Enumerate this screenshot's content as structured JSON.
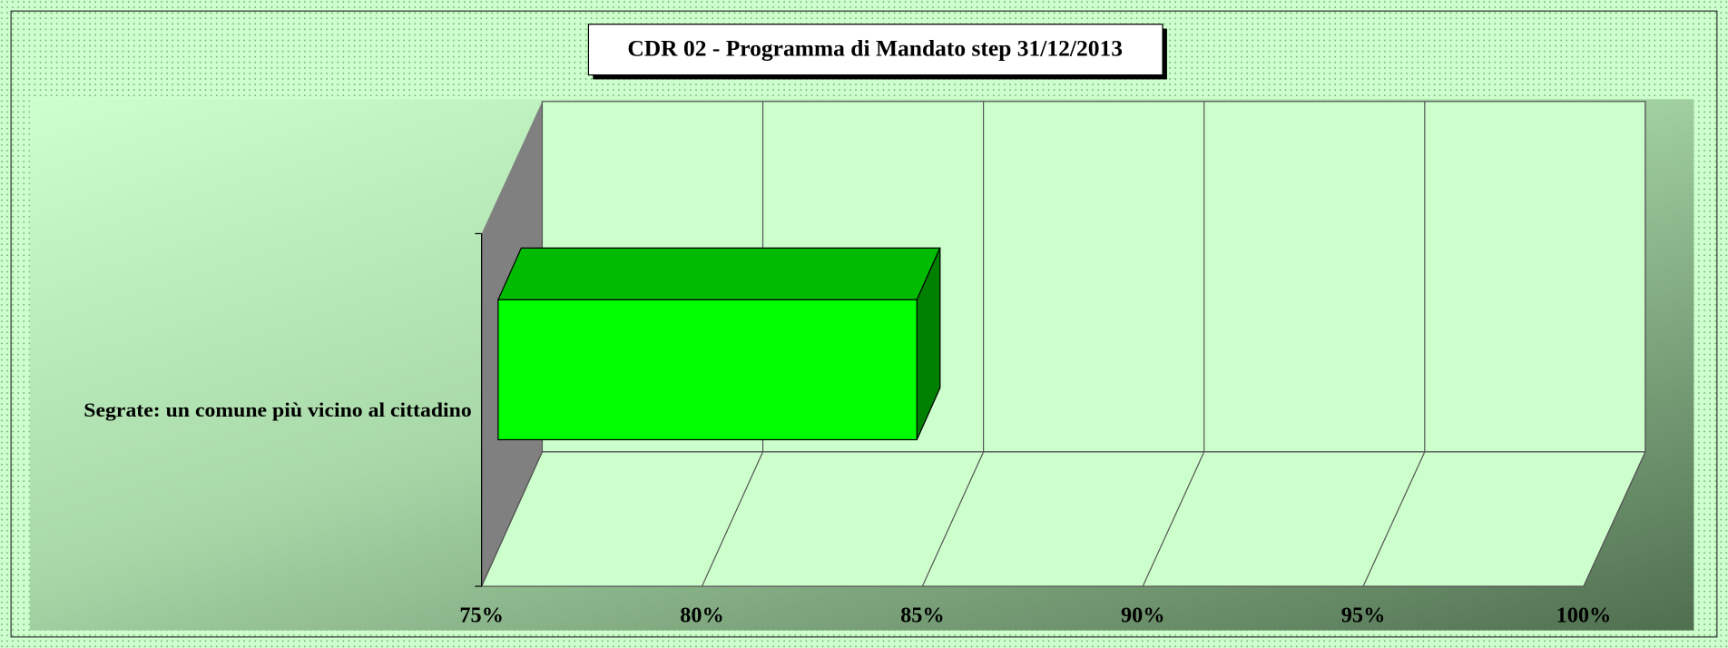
{
  "chart_data": {
    "type": "bar",
    "orientation": "horizontal",
    "title": "CDR 02 -  Programma di Mandato step 31/12/2013",
    "categories": [
      "Segrate: un comune più vicino al cittadino"
    ],
    "values": [
      84.5
    ],
    "color": "#00ff00",
    "xlim": [
      75,
      100
    ],
    "xticks": [
      {
        "value": 75,
        "label": "75%"
      },
      {
        "value": 80,
        "label": "80%"
      },
      {
        "value": 85,
        "label": "85%"
      },
      {
        "value": 90,
        "label": "90%"
      },
      {
        "value": 95,
        "label": "95%"
      },
      {
        "value": 100,
        "label": "100%"
      }
    ],
    "grid": true
  }
}
